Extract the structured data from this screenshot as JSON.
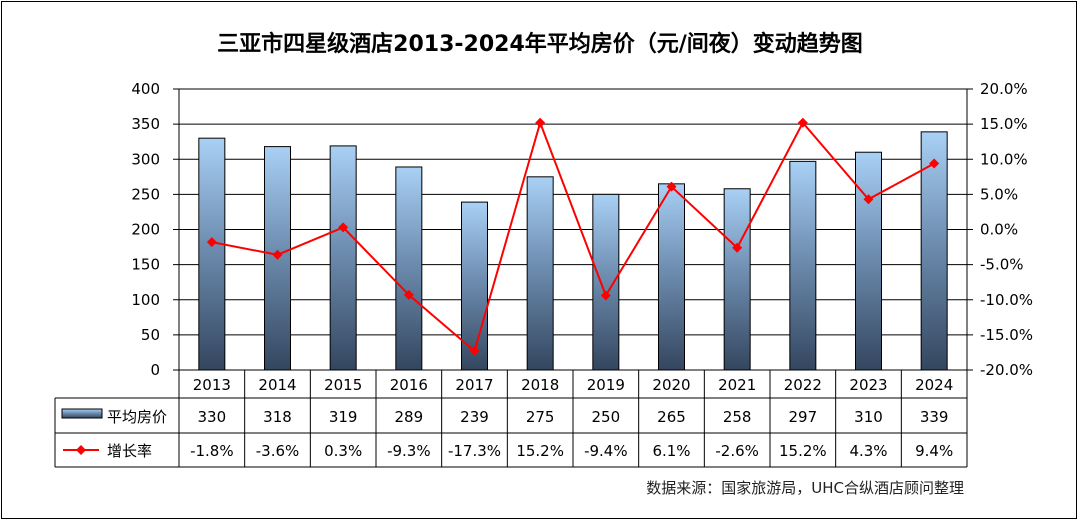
{
  "chart_data": {
    "type": "bar+line",
    "title": "三亚市四星级酒店2013-2024年平均房价（元/间夜）变动趋势图",
    "categories": [
      "2013",
      "2014",
      "2015",
      "2016",
      "2017",
      "2018",
      "2019",
      "2020",
      "2021",
      "2022",
      "2023",
      "2024"
    ],
    "series": [
      {
        "name": "平均房价",
        "type": "bar",
        "axis": "left",
        "values": [
          330,
          318,
          319,
          289,
          239,
          275,
          250,
          265,
          258,
          297,
          310,
          339
        ],
        "labels": [
          "330",
          "318",
          "319",
          "289",
          "239",
          "275",
          "250",
          "265",
          "258",
          "297",
          "310",
          "339"
        ]
      },
      {
        "name": "增长率",
        "type": "line",
        "axis": "right",
        "values": [
          -1.8,
          -3.6,
          0.3,
          -9.3,
          -17.3,
          15.2,
          -9.4,
          6.1,
          -2.6,
          15.2,
          4.3,
          9.4
        ],
        "labels": [
          "-1.8%",
          "-3.6%",
          "0.3%",
          "-9.3%",
          "-17.3%",
          "15.2%",
          "-9.4%",
          "6.1%",
          "-2.6%",
          "15.2%",
          "4.3%",
          "9.4%"
        ]
      }
    ],
    "y_left": {
      "min": 0,
      "max": 400,
      "ticks": [
        "0",
        "50",
        "100",
        "150",
        "200",
        "250",
        "300",
        "350",
        "400"
      ]
    },
    "y_right": {
      "min": -20,
      "max": 20,
      "ticks": [
        "-20.0%",
        "-15.0%",
        "-10.0%",
        "-5.0%",
        "0.0%",
        "5.0%",
        "10.0%",
        "15.0%",
        "20.0%"
      ]
    },
    "grid": true,
    "legend": "data-table",
    "source": "数据来源：国家旅游局，UHC合纵酒店顾问整理",
    "colors": {
      "bar_top": "#a9d0f5",
      "bar_bottom": "#34465f",
      "line": "#ff0000",
      "grid": "#000000"
    }
  }
}
